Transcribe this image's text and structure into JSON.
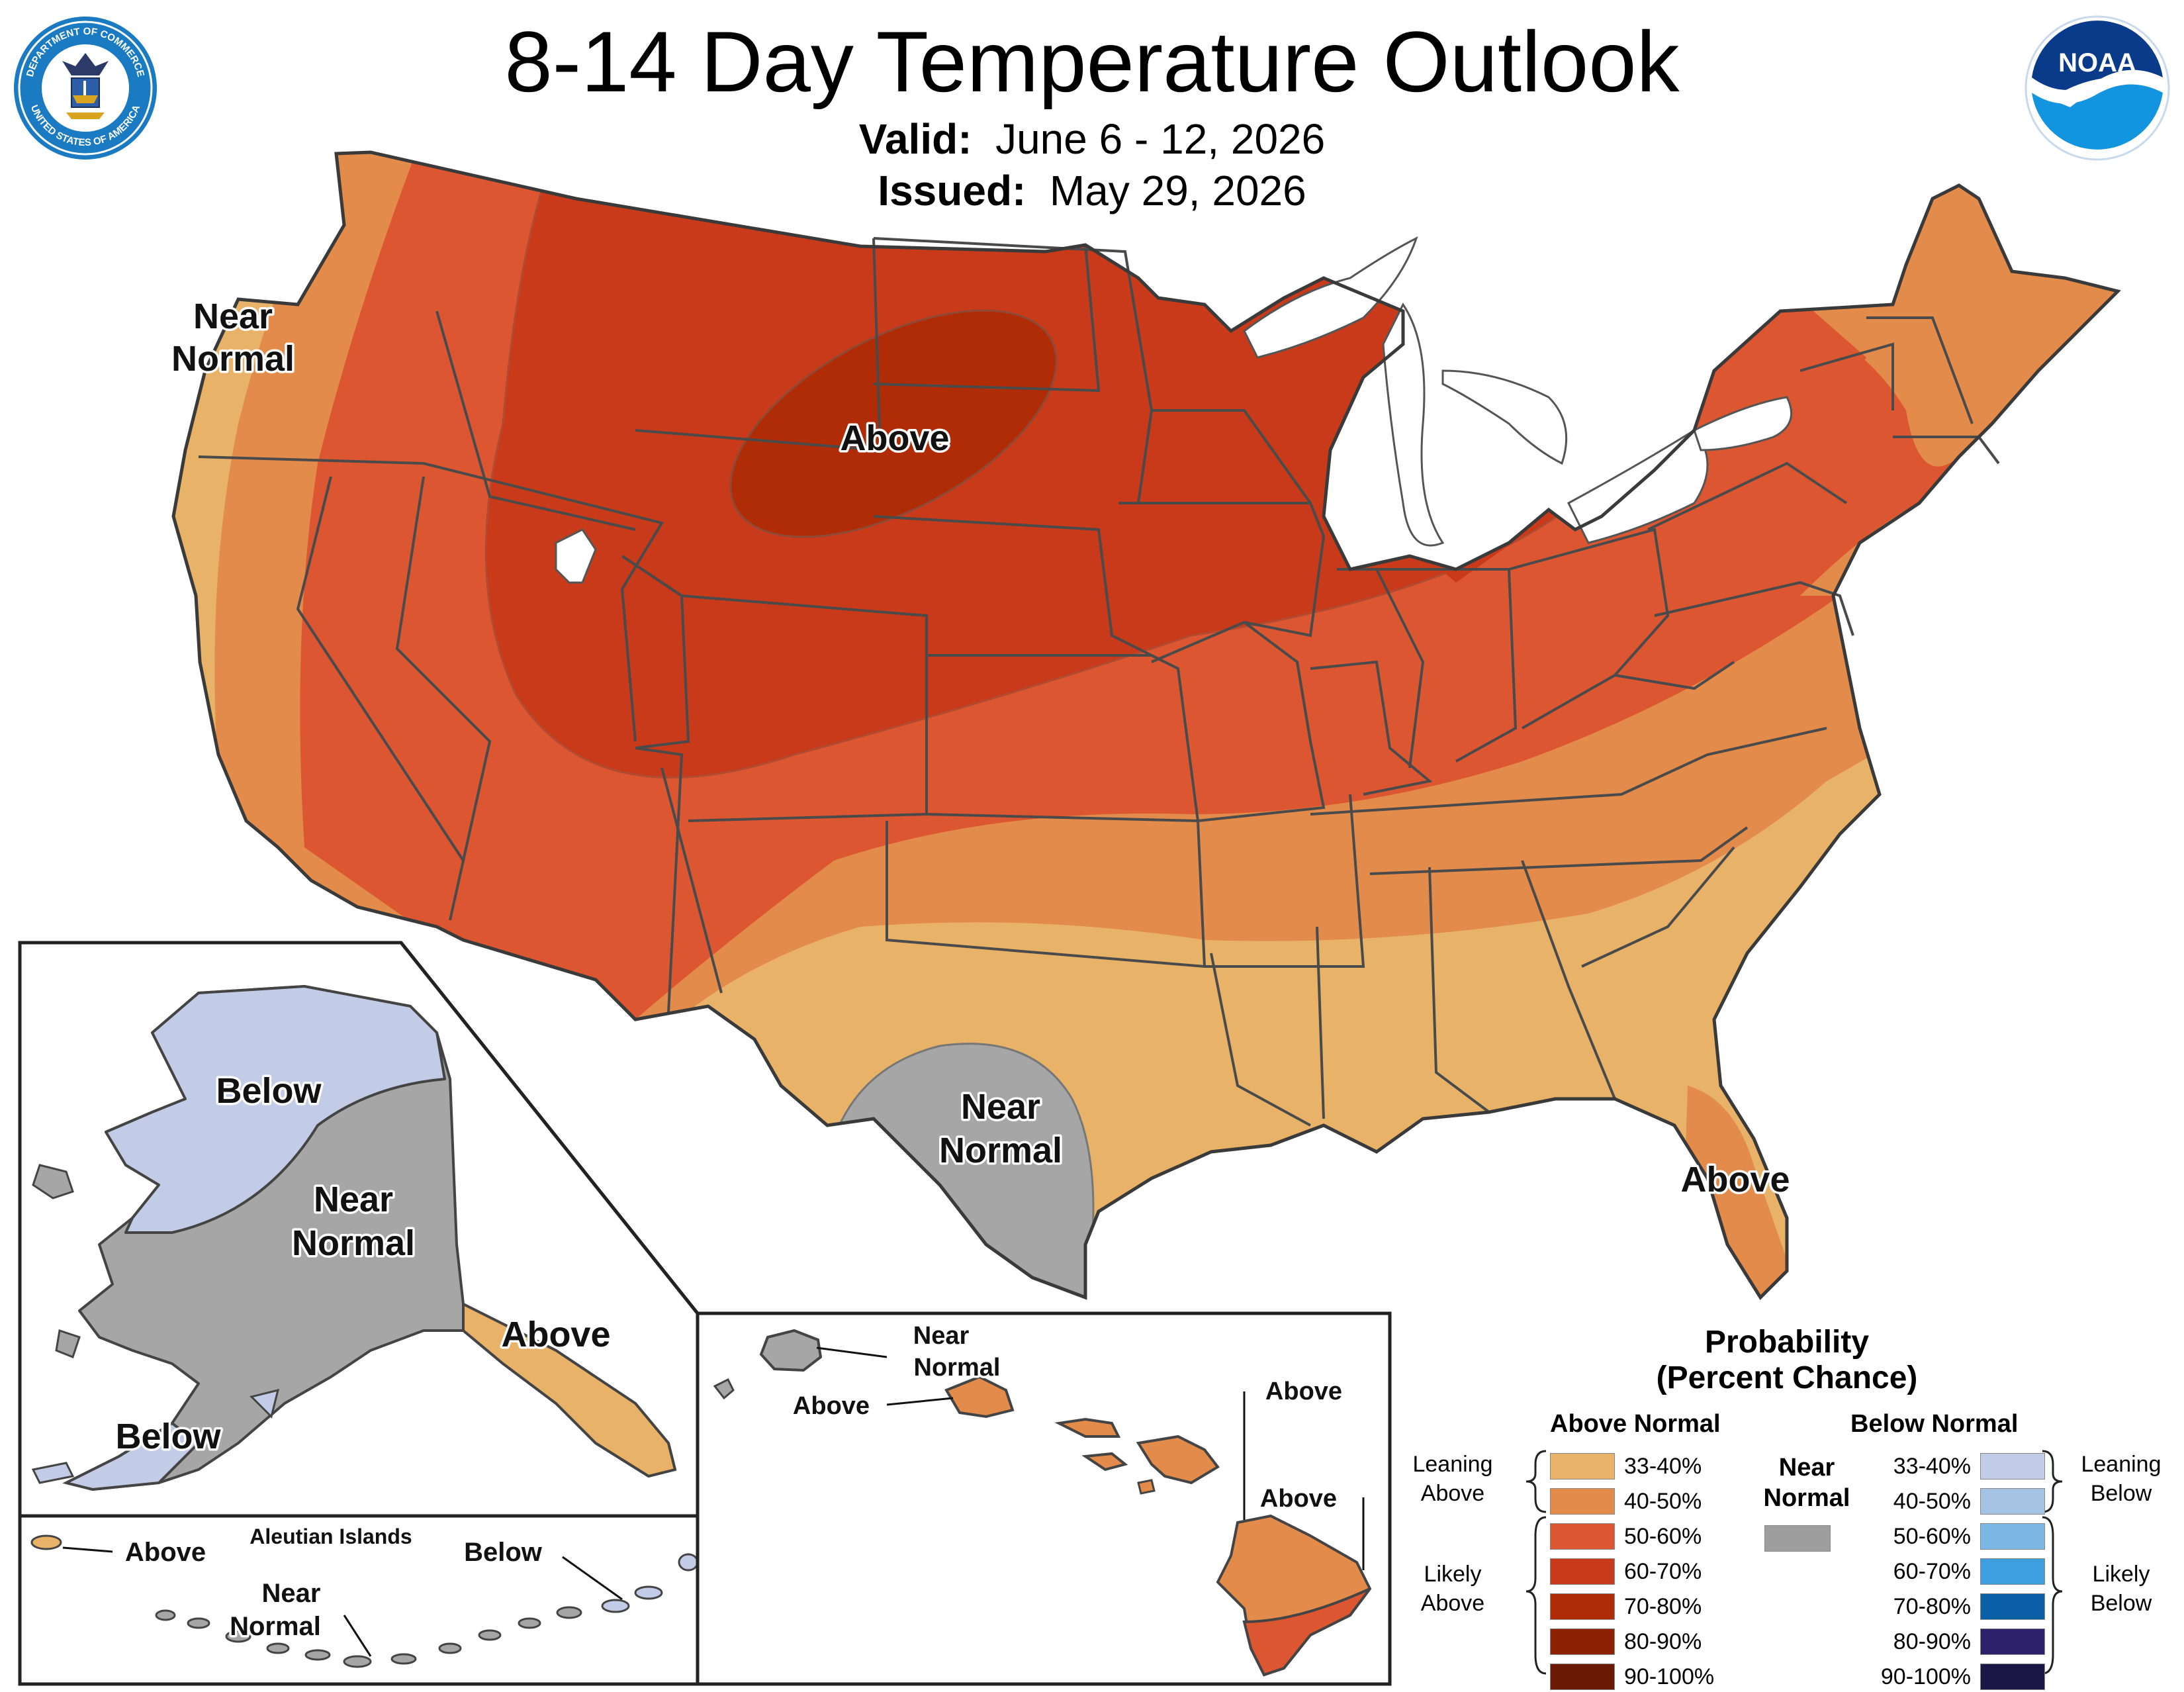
{
  "title": "8-14 Day Temperature Outlook",
  "valid_label": "Valid:",
  "valid_value": "June 6 - 12, 2026",
  "issued_label": "Issued:",
  "issued_value": "May 29, 2026",
  "logos": {
    "left": "department-of-commerce-seal",
    "left_text_top": "DEPARTMENT OF COMMERCE",
    "left_text_bottom": "UNITED STATES OF AMERICA",
    "right": "noaa-logo",
    "right_text": "NOAA"
  },
  "conus_labels": {
    "near_normal_nw_1": "Near",
    "near_normal_nw_2": "Normal",
    "above_center": "Above",
    "near_normal_tx_1": "Near",
    "near_normal_tx_2": "Normal",
    "above_fl": "Above"
  },
  "alaska_labels": {
    "below_north": "Below",
    "near_normal_1": "Near",
    "near_normal_2": "Normal",
    "above_se": "Above",
    "below_sw": "Below"
  },
  "aleutian_labels": {
    "title": "Aleutian Islands",
    "above": "Above",
    "below": "Below",
    "near_normal_1": "Near",
    "near_normal_2": "Normal"
  },
  "hawaii_labels": {
    "near_normal_1": "Near",
    "near_normal_2": "Normal",
    "above_oahu": "Above",
    "above_maui": "Above",
    "above_big_island": "Above"
  },
  "legend": {
    "title_1": "Probability",
    "title_2": "(Percent Chance)",
    "above_header": "Above Normal",
    "below_header": "Below Normal",
    "near_header_1": "Near",
    "near_header_2": "Normal",
    "near_color": "#9e9e9e",
    "leaning_above_1": "Leaning",
    "leaning_above_2": "Above",
    "likely_above_1": "Likely",
    "likely_above_2": "Above",
    "leaning_below_1": "Leaning",
    "leaning_below_2": "Below",
    "likely_below_1": "Likely",
    "likely_below_2": "Below",
    "above": [
      {
        "label": "33-40%",
        "color": "#e8b368"
      },
      {
        "label": "40-50%",
        "color": "#e38b4a"
      },
      {
        "label": "50-60%",
        "color": "#dc5632"
      },
      {
        "label": "60-70%",
        "color": "#c83a1a"
      },
      {
        "label": "70-80%",
        "color": "#b02c06"
      },
      {
        "label": "80-90%",
        "color": "#8c2104"
      },
      {
        "label": "90-100%",
        "color": "#6a1a02"
      }
    ],
    "below": [
      {
        "label": "33-40%",
        "color": "#c3cce6"
      },
      {
        "label": "40-50%",
        "color": "#a6c3e3"
      },
      {
        "label": "50-60%",
        "color": "#7bb8e6"
      },
      {
        "label": "60-70%",
        "color": "#3e9fe0"
      },
      {
        "label": "70-80%",
        "color": "#0b5fa7"
      },
      {
        "label": "80-90%",
        "color": "#2d216b"
      },
      {
        "label": "90-100%",
        "color": "#1c1646"
      }
    ]
  }
}
